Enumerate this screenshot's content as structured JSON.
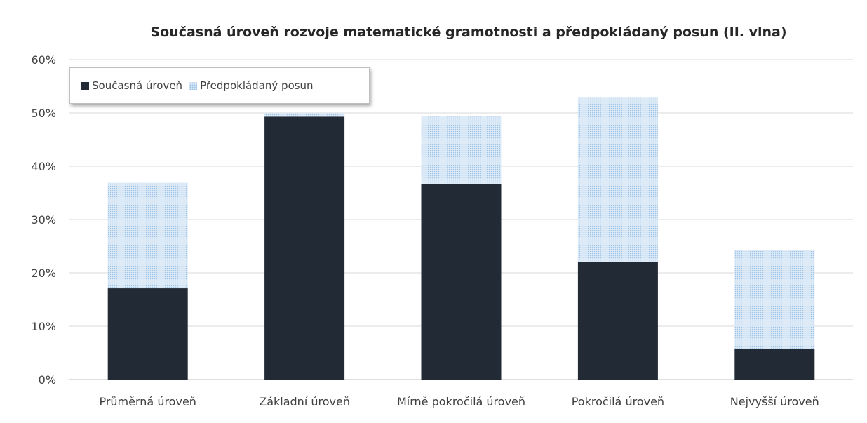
{
  "chart_data": {
    "type": "bar",
    "stacked": true,
    "title": "Současná úroveň rozvoje matematické gramotnosti a předpokládaný posun (II. vlna)",
    "xlabel": "",
    "ylabel": "",
    "categories": [
      "Průměrná úroveň",
      "Základní úroveň",
      "Mírně pokročilá úroveň",
      "Pokročilá úroveň",
      "Nejvyšší úroveň"
    ],
    "series": [
      {
        "name": "Současná úroveň",
        "values": [
          17.1,
          49.3,
          36.6,
          22.1,
          5.8
        ],
        "color": "#222a35"
      },
      {
        "name": "Předpokládaný posun",
        "values": [
          19.8,
          0.7,
          12.7,
          30.9,
          18.4
        ],
        "color": "#deebf7"
      }
    ],
    "ylim": [
      0,
      60
    ],
    "yticks": [
      "0%",
      "10%",
      "20%",
      "30%",
      "40%",
      "50%",
      "60%"
    ],
    "grid": true,
    "legend_position": "top-left"
  }
}
